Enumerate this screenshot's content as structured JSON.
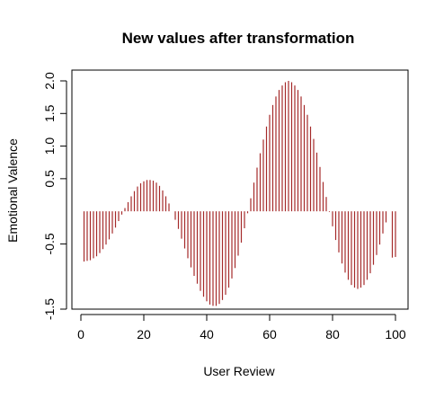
{
  "chart_data": {
    "type": "bar",
    "title": "New values after transformation",
    "xlabel": "User Review",
    "ylabel": "Emotional Valence",
    "xlim": [
      0,
      100
    ],
    "ylim": [
      -1.5,
      2.0
    ],
    "x_ticks": [
      0,
      20,
      40,
      60,
      80,
      100
    ],
    "y_ticks": [
      -1.5,
      -0.5,
      0.5,
      1.0,
      1.5,
      2.0
    ],
    "y_tick_labels": [
      "-1.5",
      "-0.5",
      "0.5",
      "1.0",
      "1.5",
      "2.0"
    ],
    "bar_color": "#a52a2a",
    "grid": false,
    "legend": "none",
    "x": [
      1,
      2,
      3,
      4,
      5,
      6,
      7,
      8,
      9,
      10,
      11,
      12,
      13,
      14,
      15,
      16,
      17,
      18,
      19,
      20,
      21,
      22,
      23,
      24,
      25,
      26,
      27,
      28,
      29,
      30,
      31,
      32,
      33,
      34,
      35,
      36,
      37,
      38,
      39,
      40,
      41,
      42,
      43,
      44,
      45,
      46,
      47,
      48,
      49,
      50,
      51,
      52,
      53,
      54,
      55,
      56,
      57,
      58,
      59,
      60,
      61,
      62,
      63,
      64,
      65,
      66,
      67,
      68,
      69,
      70,
      71,
      72,
      73,
      74,
      75,
      76,
      77,
      78,
      79,
      80,
      81,
      82,
      83,
      84,
      85,
      86,
      87,
      88,
      89,
      90,
      91,
      92,
      93,
      94,
      95,
      96,
      97,
      98,
      99,
      100
    ],
    "values": [
      -0.77,
      -0.76,
      -0.75,
      -0.72,
      -0.69,
      -0.64,
      -0.58,
      -0.51,
      -0.43,
      -0.34,
      -0.25,
      -0.15,
      -0.05,
      0.05,
      0.14,
      0.23,
      0.31,
      0.38,
      0.43,
      0.46,
      0.48,
      0.48,
      0.47,
      0.44,
      0.39,
      0.32,
      0.23,
      0.12,
      0.0,
      -0.13,
      -0.27,
      -0.42,
      -0.57,
      -0.72,
      -0.86,
      -0.99,
      -1.11,
      -1.22,
      -1.31,
      -1.38,
      -1.43,
      -1.45,
      -1.45,
      -1.42,
      -1.36,
      -1.28,
      -1.17,
      -1.03,
      -0.87,
      -0.68,
      -0.48,
      -0.26,
      -0.03,
      0.2,
      0.44,
      0.67,
      0.89,
      1.1,
      1.3,
      1.48,
      1.63,
      1.76,
      1.86,
      1.93,
      1.98,
      2.0,
      1.98,
      1.93,
      1.86,
      1.76,
      1.63,
      1.48,
      1.3,
      1.11,
      0.9,
      0.68,
      0.45,
      0.22,
      -0.01,
      -0.23,
      -0.44,
      -0.63,
      -0.8,
      -0.94,
      -1.05,
      -1.13,
      -1.17,
      -1.19,
      -1.17,
      -1.13,
      -1.05,
      -0.95,
      -0.82,
      -0.67,
      -0.51,
      -0.34,
      -0.17,
      0.0,
      -0.71,
      -0.7
    ]
  }
}
